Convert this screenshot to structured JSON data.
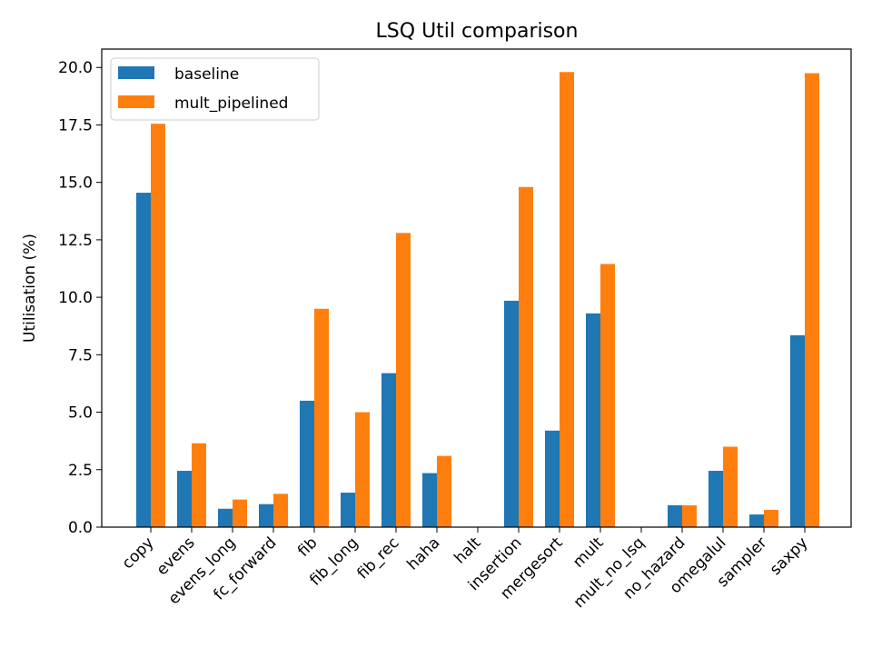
{
  "chart_data": {
    "type": "bar",
    "title": "LSQ Util comparison",
    "xlabel": "",
    "ylabel": "Utilisation (%)",
    "ylim": [
      0,
      20.8
    ],
    "yticks": [
      0.0,
      2.5,
      5.0,
      7.5,
      10.0,
      12.5,
      15.0,
      17.5,
      20.0
    ],
    "ytick_labels": [
      "0.0",
      "2.5",
      "5.0",
      "7.5",
      "10.0",
      "12.5",
      "15.0",
      "17.5",
      "20.0"
    ],
    "grid": false,
    "legend_position": "top-left",
    "categories": [
      "copy",
      "evens",
      "evens_long",
      "fc_forward",
      "fib",
      "fib_long",
      "fib_rec",
      "haha",
      "halt",
      "insertion",
      "mergesort",
      "mult",
      "mult_no_lsq",
      "no_hazard",
      "omegalul",
      "sampler",
      "saxpy"
    ],
    "series": [
      {
        "name": "baseline",
        "color": "#1f77b4",
        "values": [
          14.55,
          2.45,
          0.8,
          1.0,
          5.5,
          1.5,
          6.7,
          2.35,
          0.0,
          9.85,
          4.2,
          9.3,
          0.0,
          0.95,
          2.45,
          0.55,
          8.35
        ]
      },
      {
        "name": "mult_pipelined",
        "color": "#ff7f0e",
        "values": [
          17.55,
          3.65,
          1.2,
          1.45,
          9.5,
          5.0,
          12.8,
          3.1,
          0.0,
          14.8,
          19.8,
          11.45,
          0.0,
          0.95,
          3.5,
          0.75,
          19.75
        ]
      }
    ]
  }
}
